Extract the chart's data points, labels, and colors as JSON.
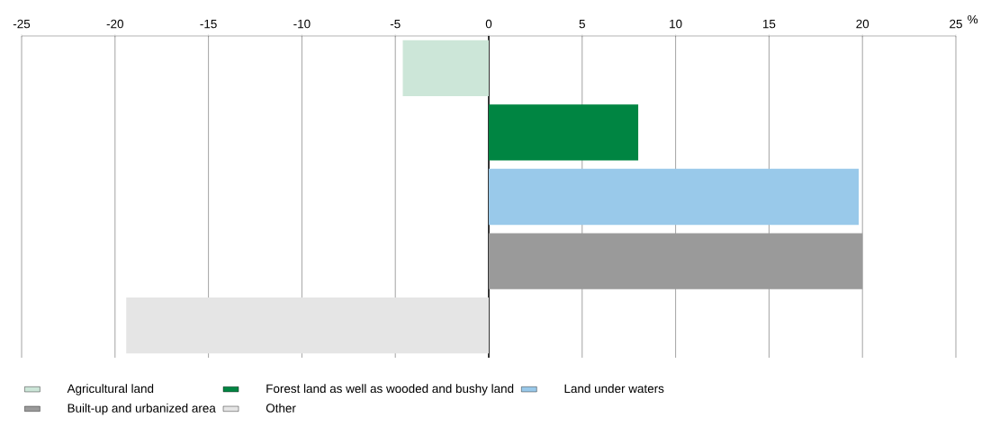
{
  "chart_data": {
    "type": "bar",
    "orientation": "horizontal",
    "categories": [
      null,
      null,
      null,
      null,
      null
    ],
    "xlabel": "%",
    "xlim": [
      -25,
      25
    ],
    "xticks": [
      -25,
      -20,
      -15,
      -10,
      -5,
      0,
      5,
      10,
      15,
      20,
      25
    ],
    "grid": "x",
    "legend": "bottom",
    "series": [
      {
        "name": "Agricultural land",
        "color": "#cce6d8",
        "values": [
          -4.6,
          null,
          null,
          null,
          null
        ]
      },
      {
        "name": "Forest land as well as wooded and bushy land",
        "color": "#008542",
        "values": [
          null,
          8.0,
          null,
          null,
          null
        ]
      },
      {
        "name": "Land under waters",
        "color": "#99c9ea",
        "values": [
          null,
          null,
          19.8,
          null,
          null
        ]
      },
      {
        "name": "Built-up and urbanized area",
        "color": "#9a9a9a",
        "values": [
          null,
          null,
          null,
          20.0,
          null
        ]
      },
      {
        "name": "Other",
        "color": "#e5e5e5",
        "values": [
          null,
          null,
          null,
          null,
          -19.4
        ]
      }
    ]
  }
}
